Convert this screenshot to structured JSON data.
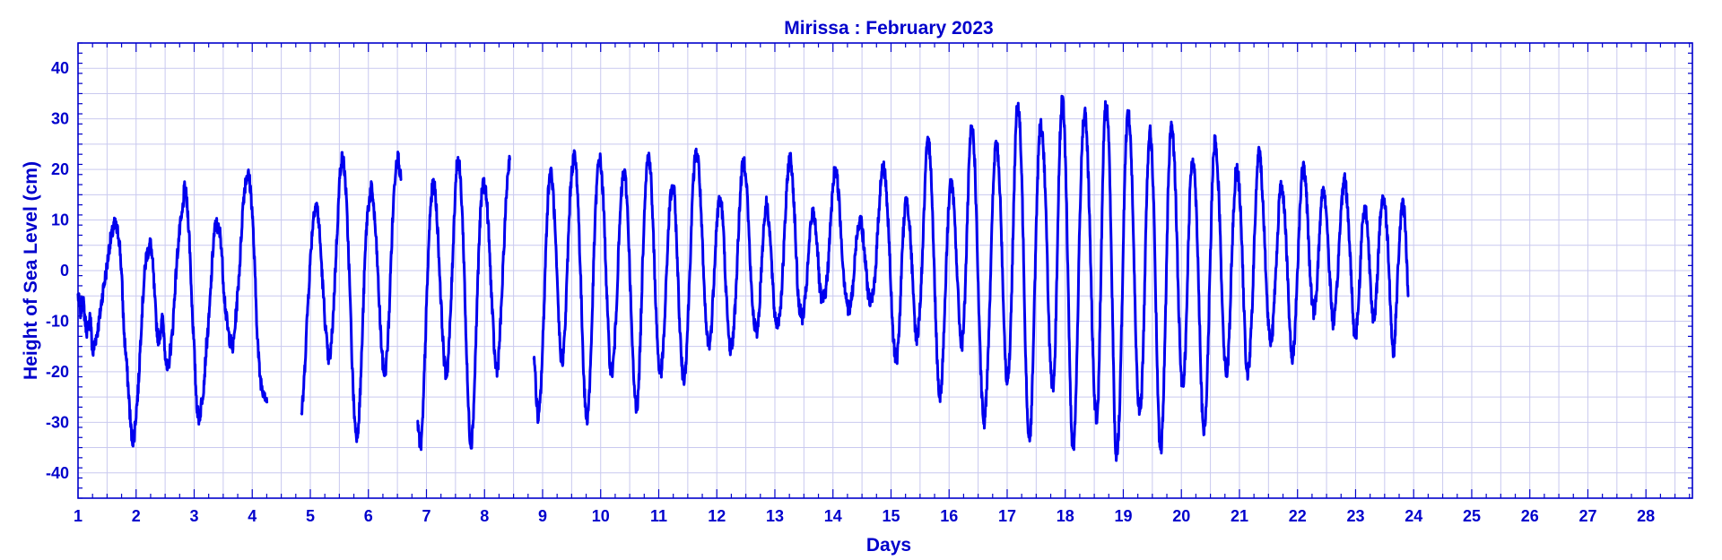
{
  "chart_data": {
    "type": "line",
    "title": "Mirissa : February  2023",
    "xlabel": "Days",
    "ylabel": "Height of Sea Level (cm)",
    "xlim": [
      1,
      28.8
    ],
    "ylim": [
      -45,
      45
    ],
    "xticks": [
      1,
      2,
      3,
      4,
      5,
      6,
      7,
      8,
      9,
      10,
      11,
      12,
      13,
      14,
      15,
      16,
      17,
      18,
      19,
      20,
      21,
      22,
      23,
      24,
      25,
      26,
      27,
      28
    ],
    "yticks": [
      -40,
      -30,
      -20,
      -10,
      0,
      10,
      20,
      30,
      40
    ],
    "grid": true,
    "color": "#0000ee",
    "sampling_interval_days": 0.0417,
    "series": [
      {
        "start_day": 1.0,
        "values": [
          -5,
          -8,
          -6,
          -10,
          -12,
          -9,
          -16,
          -14,
          -12,
          -9,
          -5,
          -2,
          1,
          5,
          7,
          9,
          8,
          6,
          -1,
          -12,
          -18,
          -25,
          -32,
          -33,
          -28,
          -22,
          -12,
          -4,
          2,
          4,
          5,
          0,
          -8,
          -13,
          -12,
          -10,
          -16,
          -20,
          -16,
          -12,
          -4,
          3,
          8,
          11,
          16,
          13,
          6,
          -6,
          -16,
          -26,
          -29,
          -26,
          -22,
          -15,
          -10,
          -2,
          6,
          9,
          8,
          6,
          -2,
          -8,
          -12,
          -14,
          -15,
          -10,
          -4,
          3,
          12,
          17,
          19,
          17,
          11,
          0,
          -12,
          -20,
          -23,
          -24,
          -26
        ]
      },
      {
        "start_day": 4.85,
        "values": [
          -28,
          -22,
          -12,
          -3,
          5,
          11,
          13,
          10,
          3,
          -5,
          -12,
          -17,
          -16,
          -9,
          1,
          11,
          20,
          22,
          18,
          8,
          -5,
          -20,
          -30,
          -32,
          -26,
          -14,
          0,
          10,
          14,
          16,
          11,
          4,
          -6,
          -15,
          -20,
          -18,
          -10,
          3,
          14,
          21,
          22,
          18
        ]
      },
      {
        "start_day": 6.85,
        "values": [
          -30,
          -35,
          -30,
          -16,
          -2,
          10,
          16,
          16,
          10,
          0,
          -10,
          -18,
          -20,
          -14,
          -3,
          10,
          20,
          21,
          15,
          3,
          -14,
          -28,
          -34,
          -28,
          -14,
          1,
          12,
          17,
          16,
          10,
          0,
          -10,
          -18,
          -19,
          -12,
          -2,
          9,
          18,
          22
        ]
      },
      {
        "start_day": 8.85,
        "values": [
          -16,
          -25,
          -29,
          -22,
          -10,
          5,
          16,
          19,
          15,
          5,
          -7,
          -16,
          -17,
          -10,
          3,
          15,
          21,
          22,
          16,
          3,
          -12,
          -25,
          -29,
          -23,
          -10,
          6,
          17,
          22,
          19,
          10,
          -3,
          -15,
          -20,
          -17,
          -8,
          4,
          14,
          19,
          17,
          8,
          -6,
          -19,
          -26,
          -25,
          -13,
          3,
          16,
          22,
          21,
          11,
          -2,
          -14,
          -20,
          -18,
          -10,
          2,
          12,
          16,
          15,
          5,
          -8,
          -18,
          -21,
          -16,
          -5,
          8,
          19,
          23,
          21,
          12,
          0,
          -10,
          -14,
          -13,
          -5,
          5,
          12,
          14,
          10,
          0,
          -10,
          -15,
          -14,
          -8,
          2,
          13,
          20,
          21,
          16,
          5,
          -5,
          -10,
          -12,
          -8,
          1,
          9,
          13,
          10,
          3,
          -6,
          -10,
          -10,
          -6,
          2,
          12,
          20,
          22,
          17,
          7,
          -4,
          -8,
          -9,
          -6,
          0,
          7,
          11,
          10,
          5,
          -3,
          -6,
          -5,
          -2,
          5,
          13,
          19,
          19,
          14,
          6,
          -1,
          -5,
          -8,
          -6,
          -2,
          5,
          9,
          10,
          6,
          1,
          -4,
          -6,
          -5,
          0,
          8,
          16,
          20,
          19,
          12,
          2,
          -10,
          -16,
          -17,
          -10,
          2,
          11,
          14,
          10,
          2,
          -8,
          -13,
          -10,
          -2,
          10,
          22,
          25,
          20,
          5,
          -10,
          -22,
          -24,
          -16,
          -3,
          10,
          17,
          15,
          8,
          -3,
          -12,
          -14,
          -5,
          10,
          24,
          28,
          22,
          6,
          -12,
          -25,
          -30,
          -23,
          -10,
          6,
          20,
          25,
          20,
          8,
          -8,
          -20,
          -20,
          -10,
          10,
          28,
          32,
          25,
          8,
          -15,
          -30,
          -32,
          -20,
          0,
          18,
          28,
          27,
          18,
          2,
          -15,
          -23,
          -20,
          0,
          22,
          33,
          29,
          12,
          -12,
          -31,
          -34,
          -22,
          0,
          20,
          30,
          29,
          18,
          0,
          -19,
          -28,
          -26,
          -5,
          20,
          32,
          30,
          15,
          -10,
          -33,
          -35,
          -25,
          -4,
          18,
          30,
          29,
          18,
          -2,
          -20,
          -27,
          -24,
          -8,
          14,
          26,
          25,
          12,
          -10,
          -30,
          -35,
          -25,
          -5,
          17,
          28,
          26,
          15,
          -2,
          -18,
          -22,
          -16,
          0,
          16,
          22,
          18,
          6,
          -12,
          -28,
          -31,
          -22,
          -4,
          14,
          25,
          23,
          13,
          -2,
          -15,
          -20,
          -15,
          0,
          12,
          20,
          18,
          10,
          -4,
          -17,
          -20,
          -14,
          -2,
          12,
          22,
          22,
          14,
          3,
          -8,
          -13,
          -12,
          -4,
          6,
          15,
          16,
          12,
          2,
          -10,
          -17,
          -14,
          -4,
          8,
          18,
          20,
          15,
          5,
          -4,
          -8,
          -5,
          3,
          12,
          16,
          13,
          5,
          -4,
          -10,
          -8,
          0,
          9,
          16,
          18,
          12,
          4,
          -6,
          -13,
          -10,
          -2,
          8,
          12,
          10,
          2,
          -6,
          -10,
          -4,
          6,
          13,
          14,
          10,
          2,
          -10,
          -16,
          -9,
          2,
          10,
          13,
          8,
          -5
        ]
      }
    ]
  }
}
